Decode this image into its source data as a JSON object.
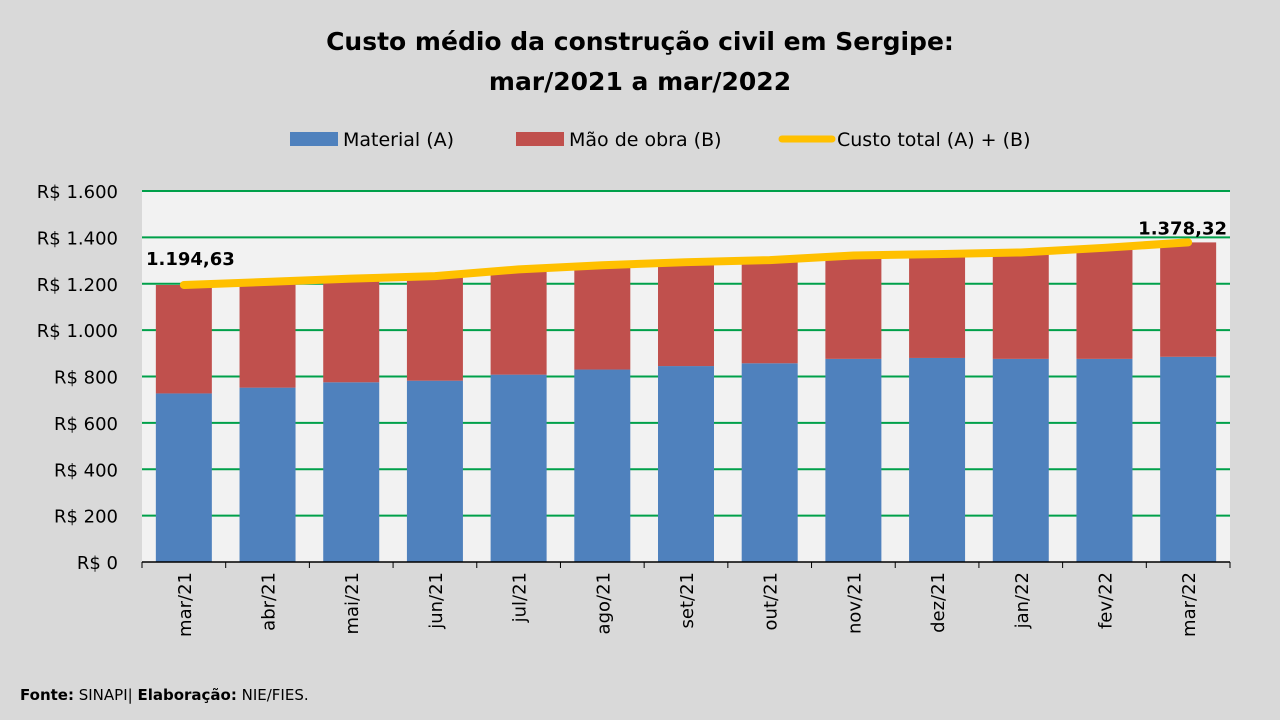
{
  "chart_data": {
    "type": "bar",
    "stacked": true,
    "title": [
      "Custo médio da construção civil em Sergipe:",
      "mar/2021 a mar/2022"
    ],
    "categories": [
      "mar/21",
      "abr/21",
      "mai/21",
      "jun/21",
      "jul/21",
      "ago/21",
      "set/21",
      "out/21",
      "nov/21",
      "dez/21",
      "jan/22",
      "fev/22",
      "mar/22"
    ],
    "series": [
      {
        "name": "Material (A)",
        "type": "bar",
        "color": "#4f81bd",
        "values": [
          727,
          752,
          775,
          782,
          808,
          830,
          845,
          857,
          876,
          880,
          876,
          876,
          885
        ]
      },
      {
        "name": "Mão de obra (B)",
        "type": "bar",
        "color": "#c0504d",
        "values": [
          467.63,
          456,
          447,
          451,
          454,
          450,
          448,
          445,
          446,
          448,
          459,
          479,
          493.32
        ]
      },
      {
        "name": "Custo total (A) + (B)",
        "type": "line",
        "color": "#ffc000",
        "values": [
          1194.63,
          1208,
          1222,
          1233,
          1262,
          1280,
          1293,
          1302,
          1322,
          1328,
          1335,
          1355,
          1378.32
        ]
      }
    ],
    "data_labels": {
      "first": "1.194,63",
      "last": "1.378,32"
    },
    "ylim": [
      0,
      1600
    ],
    "yticks": [
      0,
      200,
      400,
      600,
      800,
      1000,
      1200,
      1400,
      1600
    ],
    "ytick_labels": [
      "R$ 0",
      "R$ 200",
      "R$ 400",
      "R$ 600",
      "R$ 800",
      "R$ 1.000",
      "R$ 1.200",
      "R$ 1.400",
      "R$ 1.600"
    ],
    "xlabel": "",
    "ylabel": "",
    "grid": true,
    "grid_color": "#00a04a",
    "legend_position": "top"
  },
  "footer": {
    "fonte_label": "Fonte:",
    "fonte": " SINAPI| ",
    "elab_label": "Elaboração:",
    "elab": " NIE/FIES."
  }
}
